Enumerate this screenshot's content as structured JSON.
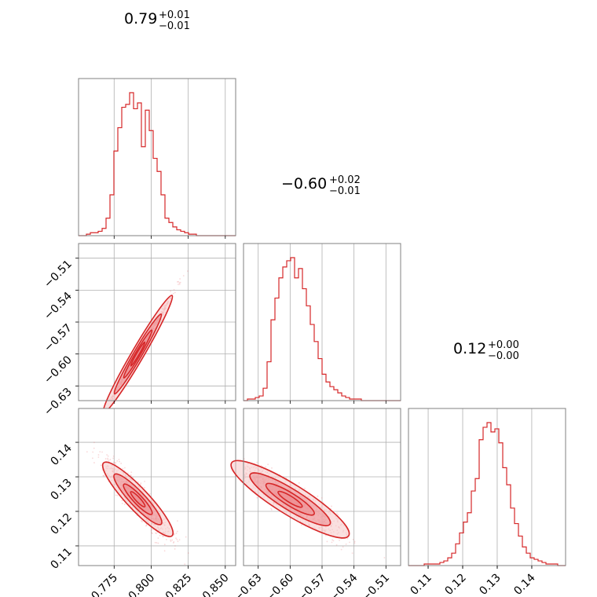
{
  "colors": {
    "main": "#d62728",
    "fill_light": "#f6c6c7",
    "fill_mid": "#ec8d8f",
    "grid": "#b0b0b0",
    "frame": "#808080",
    "scatter": "#e8767a"
  },
  "titles": [
    {
      "value": "0.79",
      "plus": "+0.01",
      "minus": "−0.01"
    },
    {
      "value": "−0.60",
      "plus": "+0.02",
      "minus": "−0.01"
    },
    {
      "value": "0.12",
      "plus": "+0.00",
      "minus": "−0.00"
    }
  ],
  "chart_data": {
    "type": "corner",
    "parameters": [
      {
        "range": [
          0.751,
          0.857
        ],
        "ticks": [
          0.775,
          0.8,
          0.825,
          0.85
        ],
        "tick_labels": [
          "0.775",
          "0.800",
          "0.825",
          "0.850"
        ]
      },
      {
        "range": [
          -0.6438,
          -0.4962
        ],
        "ticks": [
          -0.63,
          -0.6,
          -0.57,
          -0.54,
          -0.51
        ],
        "tick_labels": [
          "−0.63",
          "−0.60",
          "−0.57",
          "−0.54",
          "−0.51"
        ]
      },
      {
        "range": [
          0.1043,
          0.1498
        ],
        "ticks": [
          0.11,
          0.12,
          0.13,
          0.14
        ],
        "tick_labels": [
          "0.11",
          "0.12",
          "0.13",
          "0.14"
        ]
      }
    ],
    "histograms": [
      {
        "param": 0,
        "bins": 40,
        "heights": [
          0,
          0,
          1,
          2,
          2,
          3,
          5,
          12,
          28,
          58,
          74,
          88,
          90,
          98,
          87,
          91,
          61,
          86,
          72,
          53,
          44,
          28,
          12,
          9,
          6,
          4,
          3,
          2,
          1,
          1,
          0,
          0,
          0,
          0,
          0,
          0,
          0,
          0,
          0,
          0
        ]
      },
      {
        "param": 1,
        "bins": 40,
        "heights": [
          0,
          1,
          1,
          2,
          3,
          8,
          25,
          52,
          66,
          79,
          86,
          90,
          92,
          79,
          85,
          72,
          61,
          49,
          38,
          27,
          17,
          12,
          9,
          7,
          5,
          3,
          2,
          1,
          1,
          1,
          0,
          0,
          0,
          0,
          0,
          0,
          0,
          0,
          0,
          0
        ]
      },
      {
        "param": 2,
        "bins": 40,
        "heights": [
          0,
          0,
          0,
          0,
          1,
          1,
          1,
          1,
          2,
          3,
          5,
          8,
          14,
          21,
          28,
          34,
          48,
          56,
          81,
          89,
          92,
          86,
          88,
          79,
          63,
          52,
          37,
          27,
          19,
          12,
          8,
          5,
          4,
          3,
          2,
          1,
          1,
          1,
          0,
          0
        ]
      }
    ],
    "pairs": [
      {
        "x_param": 0,
        "y_param": 1,
        "correlation": "positive, near-linear"
      },
      {
        "x_param": 0,
        "y_param": 2,
        "correlation": "negative"
      },
      {
        "x_param": 1,
        "y_param": 2,
        "correlation": "negative"
      }
    ],
    "grid": true
  }
}
